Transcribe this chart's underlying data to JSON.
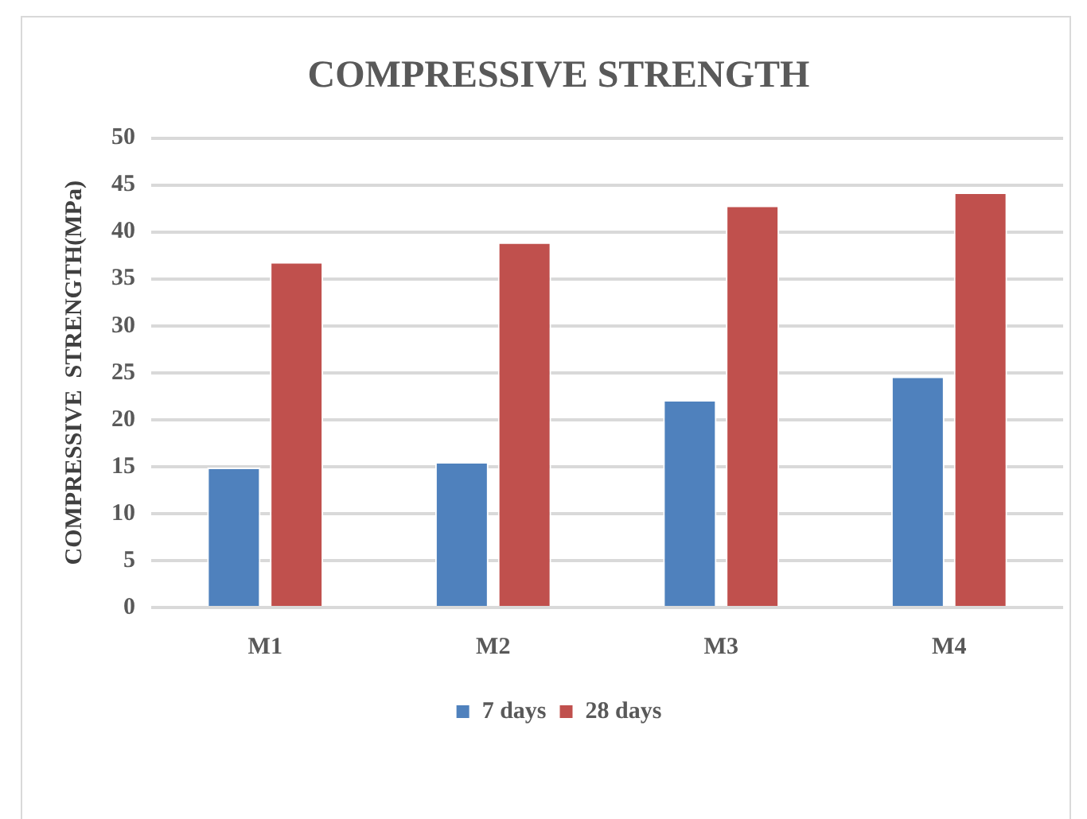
{
  "chart_data": {
    "type": "bar",
    "title": "COMPRESSIVE STRENGTH",
    "ylabel": "COMPRESSIVE  STRENGTH(MPa)",
    "categories": [
      "M1",
      "M2",
      "M3",
      "M4"
    ],
    "series": [
      {
        "name": "7 days",
        "color": "#4f81bd",
        "values": [
          14.9,
          15.5,
          22.1,
          24.6
        ]
      },
      {
        "name": "28 days",
        "color": "#c0504d",
        "values": [
          36.8,
          38.9,
          42.8,
          44.2
        ]
      }
    ],
    "ylim": [
      0,
      50
    ],
    "yticks": [
      0,
      5,
      10,
      15,
      20,
      25,
      30,
      35,
      40,
      45,
      50
    ],
    "grid": "y",
    "legend": "bottom"
  }
}
